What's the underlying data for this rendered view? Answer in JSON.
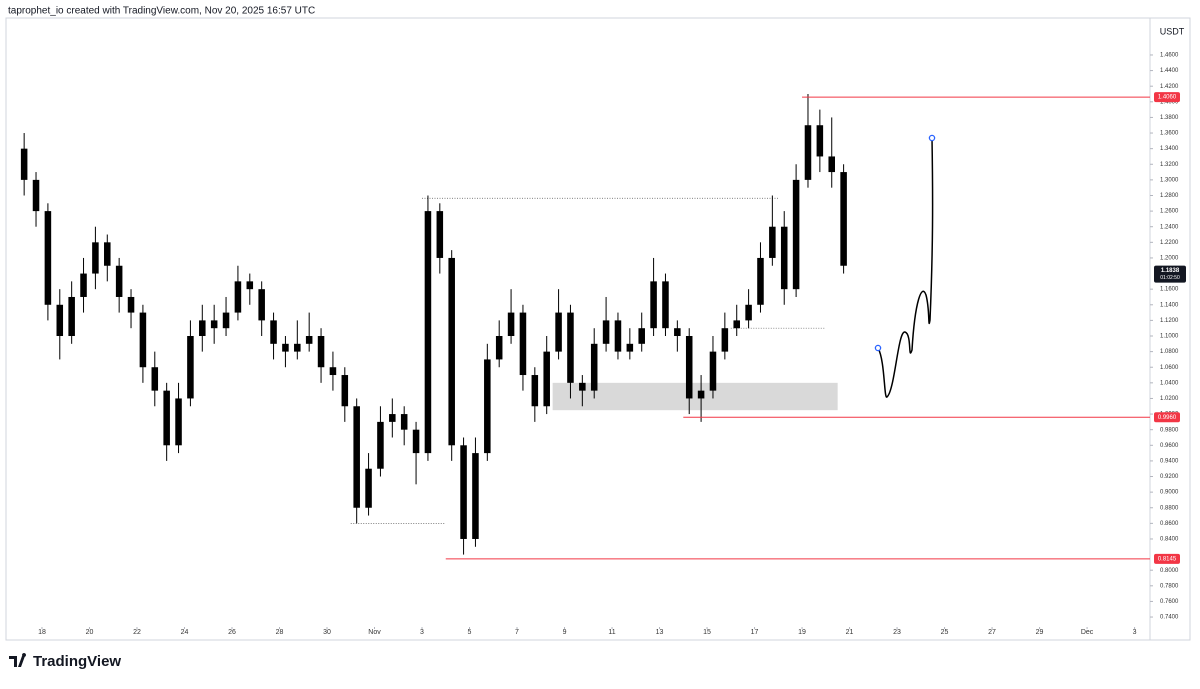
{
  "header": {
    "caption": "taprophet_io created with TradingView.com, Nov 20, 2025 16:57 UTC",
    "currency": "USDT",
    "brand": "TradingView"
  },
  "chart_data": {
    "type": "candlestick",
    "color": "#000000",
    "x": [
      "2025-10-17T00:00",
      "2025-10-17T12:00",
      "2025-10-18T00:00",
      "2025-10-18T12:00",
      "2025-10-19T00:00",
      "2025-10-19T12:00",
      "2025-10-20T00:00",
      "2025-10-20T12:00",
      "2025-10-21T00:00",
      "2025-10-21T12:00",
      "2025-10-22T00:00",
      "2025-10-22T12:00",
      "2025-10-23T00:00",
      "2025-10-23T12:00",
      "2025-10-24T00:00",
      "2025-10-24T12:00",
      "2025-10-25T00:00",
      "2025-10-25T12:00",
      "2025-10-26T00:00",
      "2025-10-26T12:00",
      "2025-10-27T00:00",
      "2025-10-27T12:00",
      "2025-10-28T00:00",
      "2025-10-28T12:00",
      "2025-10-29T00:00",
      "2025-10-29T12:00",
      "2025-10-30T00:00",
      "2025-10-30T12:00",
      "2025-10-31T00:00",
      "2025-10-31T12:00",
      "2025-11-01T00:00",
      "2025-11-01T12:00",
      "2025-11-02T00:00",
      "2025-11-02T12:00",
      "2025-11-03T00:00",
      "2025-11-03T12:00",
      "2025-11-04T00:00",
      "2025-11-04T12:00",
      "2025-11-05T00:00",
      "2025-11-05T12:00",
      "2025-11-06T00:00",
      "2025-11-06T12:00",
      "2025-11-07T00:00",
      "2025-11-07T12:00",
      "2025-11-08T00:00",
      "2025-11-08T12:00",
      "2025-11-09T00:00",
      "2025-11-09T12:00",
      "2025-11-10T00:00",
      "2025-11-10T12:00",
      "2025-11-11T00:00",
      "2025-11-11T12:00",
      "2025-11-12T00:00",
      "2025-11-12T12:00",
      "2025-11-13T00:00",
      "2025-11-13T12:00",
      "2025-11-14T00:00",
      "2025-11-14T12:00",
      "2025-11-15T00:00",
      "2025-11-15T12:00",
      "2025-11-16T00:00",
      "2025-11-16T12:00",
      "2025-11-17T00:00",
      "2025-11-17T12:00",
      "2025-11-18T00:00",
      "2025-11-18T12:00",
      "2025-11-19T00:00",
      "2025-11-19T12:00",
      "2025-11-20T00:00",
      "2025-11-20T12:00"
    ],
    "ohlc": [
      [
        1.34,
        1.36,
        1.28,
        1.3
      ],
      [
        1.3,
        1.31,
        1.24,
        1.26
      ],
      [
        1.26,
        1.27,
        1.12,
        1.14
      ],
      [
        1.14,
        1.16,
        1.07,
        1.1
      ],
      [
        1.1,
        1.17,
        1.09,
        1.15
      ],
      [
        1.15,
        1.2,
        1.13,
        1.18
      ],
      [
        1.18,
        1.24,
        1.16,
        1.22
      ],
      [
        1.22,
        1.23,
        1.17,
        1.19
      ],
      [
        1.19,
        1.2,
        1.13,
        1.15
      ],
      [
        1.15,
        1.16,
        1.11,
        1.13
      ],
      [
        1.13,
        1.14,
        1.04,
        1.06
      ],
      [
        1.06,
        1.08,
        1.01,
        1.03
      ],
      [
        1.03,
        1.04,
        0.94,
        0.96
      ],
      [
        0.96,
        1.04,
        0.95,
        1.02
      ],
      [
        1.02,
        1.12,
        1.01,
        1.1
      ],
      [
        1.1,
        1.14,
        1.08,
        1.12
      ],
      [
        1.12,
        1.14,
        1.09,
        1.11
      ],
      [
        1.11,
        1.15,
        1.1,
        1.13
      ],
      [
        1.13,
        1.19,
        1.12,
        1.17
      ],
      [
        1.17,
        1.18,
        1.14,
        1.16
      ],
      [
        1.16,
        1.17,
        1.1,
        1.12
      ],
      [
        1.12,
        1.13,
        1.07,
        1.09
      ],
      [
        1.09,
        1.1,
        1.06,
        1.08
      ],
      [
        1.08,
        1.12,
        1.07,
        1.09
      ],
      [
        1.09,
        1.13,
        1.08,
        1.1
      ],
      [
        1.1,
        1.11,
        1.04,
        1.06
      ],
      [
        1.06,
        1.08,
        1.03,
        1.05
      ],
      [
        1.05,
        1.06,
        0.99,
        1.01
      ],
      [
        1.01,
        1.02,
        0.86,
        0.88
      ],
      [
        0.88,
        0.95,
        0.87,
        0.93
      ],
      [
        0.93,
        1.01,
        0.92,
        0.99
      ],
      [
        0.99,
        1.02,
        0.97,
        1.0
      ],
      [
        1.0,
        1.01,
        0.96,
        0.98
      ],
      [
        0.98,
        0.99,
        0.91,
        0.95
      ],
      [
        0.95,
        1.28,
        0.94,
        1.26
      ],
      [
        1.26,
        1.27,
        1.18,
        1.2
      ],
      [
        1.2,
        1.21,
        0.94,
        0.96
      ],
      [
        0.96,
        0.97,
        0.82,
        0.84
      ],
      [
        0.84,
        0.97,
        0.83,
        0.95
      ],
      [
        0.95,
        1.09,
        0.94,
        1.07
      ],
      [
        1.07,
        1.12,
        1.06,
        1.1
      ],
      [
        1.1,
        1.16,
        1.09,
        1.13
      ],
      [
        1.13,
        1.14,
        1.03,
        1.05
      ],
      [
        1.05,
        1.06,
        0.99,
        1.01
      ],
      [
        1.01,
        1.1,
        1.0,
        1.08
      ],
      [
        1.08,
        1.16,
        1.07,
        1.13
      ],
      [
        1.13,
        1.14,
        1.02,
        1.04
      ],
      [
        1.04,
        1.05,
        1.01,
        1.03
      ],
      [
        1.03,
        1.11,
        1.02,
        1.09
      ],
      [
        1.09,
        1.15,
        1.08,
        1.12
      ],
      [
        1.12,
        1.13,
        1.07,
        1.08
      ],
      [
        1.08,
        1.11,
        1.07,
        1.09
      ],
      [
        1.09,
        1.13,
        1.08,
        1.11
      ],
      [
        1.11,
        1.2,
        1.1,
        1.17
      ],
      [
        1.17,
        1.18,
        1.1,
        1.11
      ],
      [
        1.11,
        1.12,
        1.08,
        1.1
      ],
      [
        1.1,
        1.11,
        1.0,
        1.02
      ],
      [
        1.02,
        1.05,
        0.99,
        1.03
      ],
      [
        1.03,
        1.1,
        1.02,
        1.08
      ],
      [
        1.08,
        1.13,
        1.07,
        1.11
      ],
      [
        1.11,
        1.14,
        1.1,
        1.12
      ],
      [
        1.12,
        1.16,
        1.11,
        1.14
      ],
      [
        1.14,
        1.22,
        1.13,
        1.2
      ],
      [
        1.2,
        1.28,
        1.19,
        1.24
      ],
      [
        1.24,
        1.26,
        1.14,
        1.16
      ],
      [
        1.16,
        1.32,
        1.15,
        1.3
      ],
      [
        1.3,
        1.41,
        1.29,
        1.37
      ],
      [
        1.37,
        1.39,
        1.31,
        1.33
      ],
      [
        1.33,
        1.38,
        1.29,
        1.31
      ],
      [
        1.31,
        1.32,
        1.18,
        1.19
      ]
    ],
    "xlim": [
      "2025-10-16T13:41",
      "2025-12-03T15:35"
    ],
    "xticks": [
      {
        "value": "2025-10-18",
        "label": "18"
      },
      {
        "value": "2025-10-20",
        "label": "20"
      },
      {
        "value": "2025-10-22",
        "label": "22"
      },
      {
        "value": "2025-10-24",
        "label": "24"
      },
      {
        "value": "2025-10-26",
        "label": "26"
      },
      {
        "value": "2025-10-28",
        "label": "28"
      },
      {
        "value": "2025-10-30",
        "label": "30"
      },
      {
        "value": "2025-11-01",
        "label": "Nov"
      },
      {
        "value": "2025-11-03",
        "label": "3"
      },
      {
        "value": "2025-11-05",
        "label": "5"
      },
      {
        "value": "2025-11-07",
        "label": "7"
      },
      {
        "value": "2025-11-09",
        "label": "9"
      },
      {
        "value": "2025-11-11",
        "label": "11"
      },
      {
        "value": "2025-11-13",
        "label": "13"
      },
      {
        "value": "2025-11-15",
        "label": "15"
      },
      {
        "value": "2025-11-17",
        "label": "17"
      },
      {
        "value": "2025-11-19",
        "label": "19"
      },
      {
        "value": "2025-11-21",
        "label": "21"
      },
      {
        "value": "2025-11-23",
        "label": "23"
      },
      {
        "value": "2025-11-25",
        "label": "25"
      },
      {
        "value": "2025-11-27",
        "label": "27"
      },
      {
        "value": "2025-11-29",
        "label": "29"
      },
      {
        "value": "2025-12-01",
        "label": "Dec"
      },
      {
        "value": "2025-12-03",
        "label": "3"
      }
    ],
    "ylim": [
      0.7298,
      1.5048
    ],
    "yticks": [
      {
        "value": 1.46,
        "label": "1.4600"
      },
      {
        "value": 1.44,
        "label": "1.4400"
      },
      {
        "value": 1.42,
        "label": "1.4200"
      },
      {
        "value": 1.4,
        "label": "1.4000"
      },
      {
        "value": 1.38,
        "label": "1.3800"
      },
      {
        "value": 1.36,
        "label": "1.3600"
      },
      {
        "value": 1.34,
        "label": "1.3400"
      },
      {
        "value": 1.32,
        "label": "1.3200"
      },
      {
        "value": 1.3,
        "label": "1.3000"
      },
      {
        "value": 1.28,
        "label": "1.2800"
      },
      {
        "value": 1.26,
        "label": "1.2600"
      },
      {
        "value": 1.24,
        "label": "1.2400"
      },
      {
        "value": 1.22,
        "label": "1.2200"
      },
      {
        "value": 1.2,
        "label": "1.2000"
      },
      {
        "value": 1.16,
        "label": "1.1600"
      },
      {
        "value": 1.14,
        "label": "1.1400"
      },
      {
        "value": 1.12,
        "label": "1.1200"
      },
      {
        "value": 1.1,
        "label": "1.1000"
      },
      {
        "value": 1.08,
        "label": "1.0800"
      },
      {
        "value": 1.06,
        "label": "1.0600"
      },
      {
        "value": 1.04,
        "label": "1.0400"
      },
      {
        "value": 1.02,
        "label": "1.0200"
      },
      {
        "value": 1,
        "label": "1.0000"
      },
      {
        "value": 0.98,
        "label": "0.9800"
      },
      {
        "value": 0.96,
        "label": "0.9600"
      },
      {
        "value": 0.94,
        "label": "0.9400"
      },
      {
        "value": 0.92,
        "label": "0.9200"
      },
      {
        "value": 0.9,
        "label": "0.9000"
      },
      {
        "value": 0.88,
        "label": "0.8800"
      },
      {
        "value": 0.86,
        "label": "0.8600"
      },
      {
        "value": 0.84,
        "label": "0.8400"
      },
      {
        "value": 0.8,
        "label": "0.8000"
      },
      {
        "value": 0.78,
        "label": "0.7800"
      },
      {
        "value": 0.76,
        "label": "0.7600"
      },
      {
        "value": 0.74,
        "label": "0.7400"
      }
    ],
    "levels": [
      {
        "value": 1.406,
        "label": "1.4060",
        "color": "#f23645",
        "from": "2025-11-19T00:00"
      },
      {
        "value": 0.996,
        "label": "0.9960",
        "color": "#f23645",
        "from": "2025-11-14T00:00"
      },
      {
        "value": 0.8145,
        "label": "0.8145",
        "color": "#f23645",
        "from": "2025-11-04T00:00"
      }
    ],
    "last_price": {
      "value": 1.1838,
      "label": "1.1838",
      "countdown": "01:02:50",
      "color": "#131722"
    },
    "dotted": [
      {
        "value": 1.2765,
        "from": "2025-11-03T00:00",
        "to": "2025-11-18T00:00"
      },
      {
        "value": 0.86,
        "from": "2025-10-31T00:00",
        "to": "2025-11-04T00:00"
      },
      {
        "value": 1.11,
        "from": "2025-11-16T00:00",
        "to": "2025-11-20T00:00"
      }
    ],
    "zone": {
      "low": 1.005,
      "high": 1.04,
      "from": "2025-11-08T12:00",
      "to": "2025-11-20T12:00",
      "color": "#d9d9d9"
    }
  }
}
